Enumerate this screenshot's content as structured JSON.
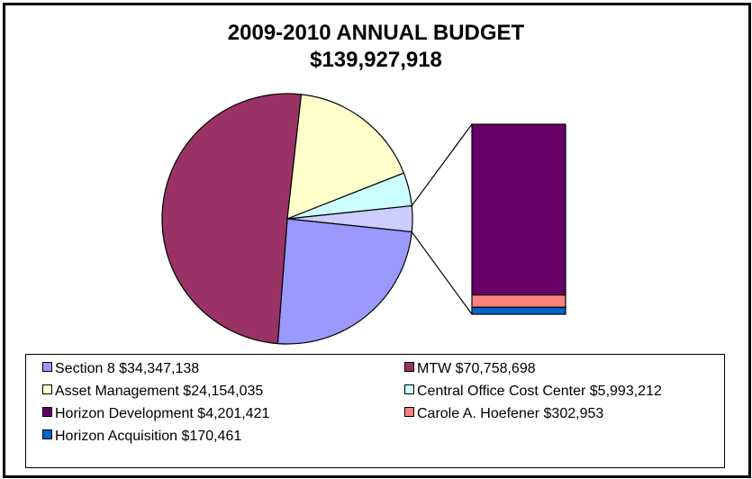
{
  "title": "2009-2010 ANNUAL BUDGET",
  "subtitle": "$139,927,918",
  "chart_data": {
    "type": "pie",
    "subtype": "pie-of-bar",
    "title": "2009-2010 ANNUAL BUDGET",
    "subtitle": "$139,927,918",
    "total": 139927918,
    "slices": [
      {
        "label": "Section 8 $34,347,138",
        "name": "Section 8",
        "value": 34347138,
        "color": "#9999ff",
        "in_pie": true
      },
      {
        "label": "MTW $70,758,698",
        "name": "MTW",
        "value": 70758698,
        "color": "#993366",
        "in_pie": true
      },
      {
        "label": "Asset Management $24,154,035",
        "name": "Asset Management",
        "value": 24154035,
        "color": "#ffffcc",
        "in_pie": true
      },
      {
        "label": "Central Office Cost Center $5,993,212",
        "name": "Central Office Cost Center",
        "value": 5993212,
        "color": "#ccffff",
        "in_pie": true
      },
      {
        "label": "Horizon Development $4,201,421",
        "name": "Horizon Development",
        "value": 4201421,
        "color": "#660066",
        "in_pie": false
      },
      {
        "label": "Carole A. Hoefener $302,953",
        "name": "Carole A. Hoefener",
        "value": 302953,
        "color": "#ff8080",
        "in_pie": false
      },
      {
        "label": "Horizon Acquisition $170,461",
        "name": "Horizon Acquisition",
        "value": 170461,
        "color": "#0066cc",
        "in_pie": false
      }
    ],
    "other_label": "",
    "legend_position": "bottom"
  }
}
